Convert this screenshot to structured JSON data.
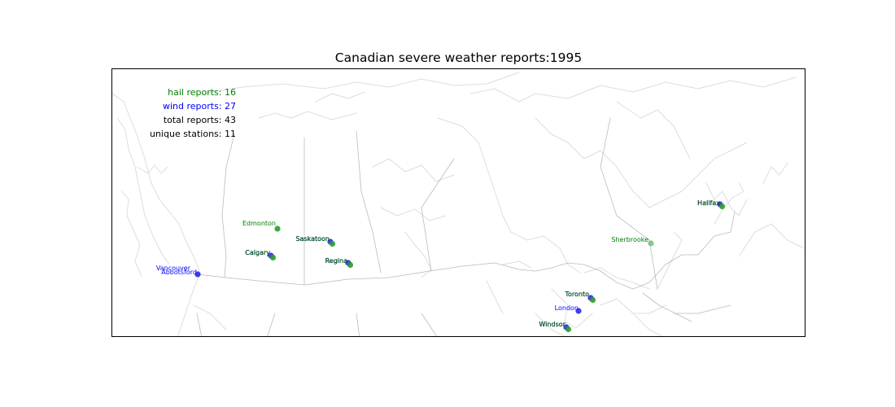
{
  "title": "Canadian severe weather reports:1995",
  "stats": {
    "hail": "hail reports: 16",
    "wind": "wind reports: 27",
    "total": "total reports: 43",
    "stations": "unique stations: 11"
  },
  "colors": {
    "hail": "#008000",
    "wind": "#0000ff",
    "hail_marker": "#2e9b2e",
    "wind_marker": "#2a2ae8",
    "sherbrooke_marker": "#7cc07c",
    "both_label": "#004d2a",
    "coast": "#dddddd",
    "border": "#bbbbbb"
  },
  "stations": [
    {
      "name": "Edmonton",
      "type": "hail"
    },
    {
      "name": "Saskatoon",
      "type": "both"
    },
    {
      "name": "Calgary",
      "type": "both"
    },
    {
      "name": "Regina",
      "type": "both"
    },
    {
      "name": "Vancouver",
      "type": "wind"
    },
    {
      "name": "Abbotsford",
      "type": "wind"
    },
    {
      "name": "Halifax",
      "type": "both"
    },
    {
      "name": "Sherbrooke",
      "type": "hail"
    },
    {
      "name": "Toronto",
      "type": "both"
    },
    {
      "name": "London",
      "type": "wind"
    },
    {
      "name": "Windsor",
      "type": "both"
    }
  ]
}
